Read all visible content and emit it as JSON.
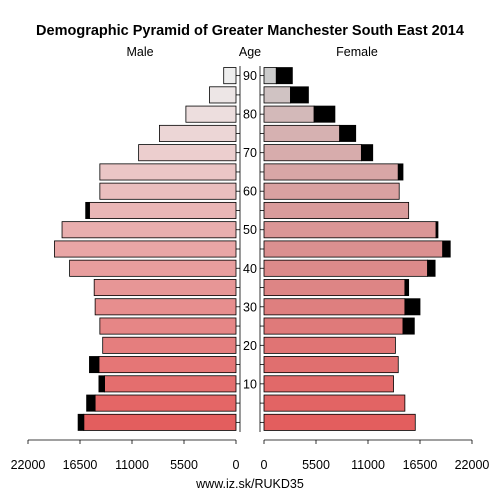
{
  "chart_data": {
    "type": "bar",
    "title": "Demographic Pyramid of Greater Manchester South East 2014",
    "left_label": "Male",
    "center_label": "Age",
    "right_label": "Female",
    "source": "www.iz.sk/RUKD35",
    "age_groups": [
      "0-4",
      "5-9",
      "10-14",
      "15-19",
      "20-24",
      "25-29",
      "30-34",
      "35-39",
      "40-44",
      "45-49",
      "50-54",
      "55-59",
      "60-64",
      "65-69",
      "70-74",
      "75-79",
      "80-84",
      "85-89",
      "90+"
    ],
    "age_ticks": [
      "10",
      "20",
      "30",
      "40",
      "50",
      "60",
      "70",
      "80",
      "90"
    ],
    "male_ticks": [
      "22000",
      "16500",
      "11000",
      "5500",
      "0"
    ],
    "female_ticks": [
      "0",
      "5500",
      "11000",
      "16500",
      "22000"
    ],
    "xlim": [
      0,
      22000
    ],
    "series": [
      {
        "name": "Male",
        "values": [
          16100,
          14900,
          13900,
          14500,
          14100,
          14400,
          14900,
          15000,
          17600,
          19200,
          18400,
          15500,
          14400,
          14400,
          10300,
          8100,
          5300,
          2800,
          1300
        ],
        "surplus": [
          600,
          900,
          600,
          1000,
          0,
          0,
          0,
          0,
          0,
          0,
          0,
          400,
          0,
          0,
          0,
          0,
          0,
          0,
          0
        ]
      },
      {
        "name": "Female",
        "values": [
          16000,
          14900,
          13700,
          14200,
          13900,
          14700,
          14900,
          14900,
          17300,
          18900,
          18200,
          15300,
          14300,
          14200,
          10300,
          8000,
          5300,
          2800,
          1300
        ],
        "surplus": [
          0,
          0,
          0,
          0,
          0,
          1200,
          1600,
          400,
          800,
          800,
          200,
          0,
          0,
          500,
          1200,
          1700,
          2200,
          1900,
          1700
        ]
      }
    ],
    "colors": {
      "male_gradient": [
        "#e35e5e",
        "#eeeeee"
      ],
      "female_gradient": [
        "#e35e5e",
        "#d6b3b3",
        "#cccccc"
      ],
      "surplus": "#000000",
      "outline": "#000000"
    }
  }
}
